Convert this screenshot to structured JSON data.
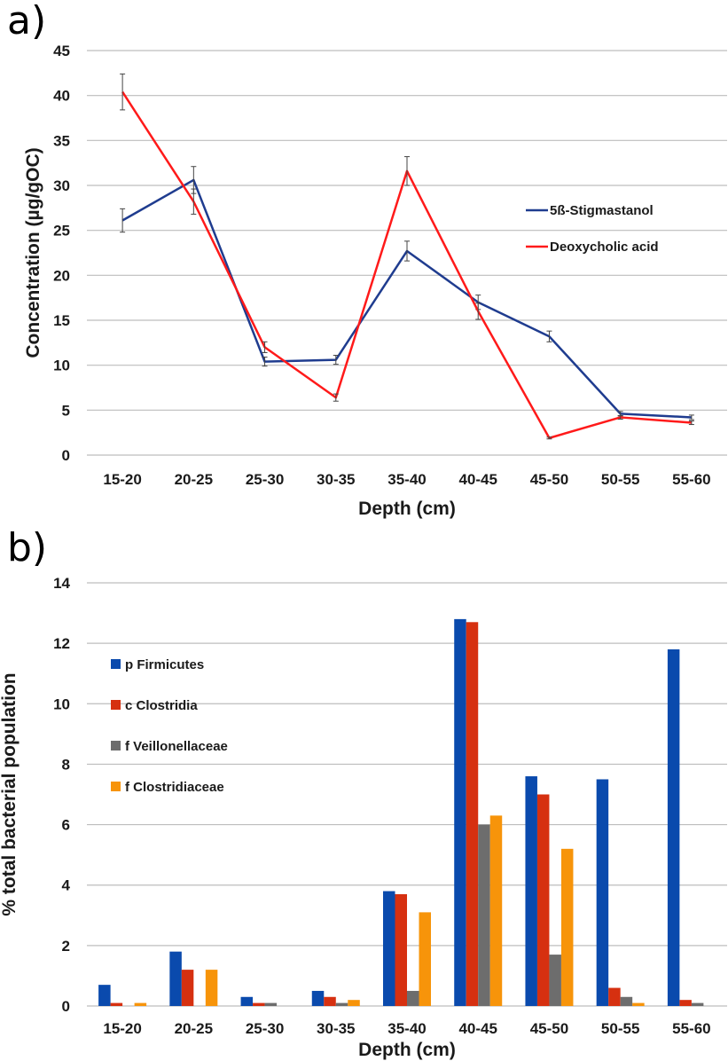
{
  "chart_data": [
    {
      "panel_label": "a)",
      "type": "line",
      "categories": [
        "15-20",
        "20-25",
        "25-30",
        "30-35",
        "35-40",
        "40-45",
        "45-50",
        "50-55",
        "55-60"
      ],
      "series": [
        {
          "name": "5ß-Stigmastanol",
          "color": "#1f3c8f",
          "values": [
            26.1,
            30.6,
            10.4,
            10.6,
            22.7,
            17.0,
            13.2,
            4.6,
            4.2
          ],
          "errors": [
            1.3,
            1.5,
            0.5,
            0.5,
            1.1,
            0.8,
            0.6,
            0.25,
            0.25
          ]
        },
        {
          "name": "Deoxycholic acid",
          "color": "#ff1a1a",
          "values": [
            40.4,
            28.2,
            12.0,
            6.4,
            31.6,
            16.0,
            1.9,
            4.2,
            3.6
          ],
          "errors": [
            2.0,
            1.4,
            0.6,
            0.4,
            1.6,
            0.9,
            0.1,
            0.2,
            0.2
          ]
        }
      ],
      "xlabel": "Depth (cm)",
      "ylabel": "Concentration (µg/gOC)",
      "ylim": [
        0,
        45
      ],
      "yticks": [
        0,
        5,
        10,
        15,
        20,
        25,
        30,
        35,
        40,
        45
      ],
      "grid": true,
      "legend_position": "right"
    },
    {
      "panel_label": "b)",
      "type": "bar",
      "categories": [
        "15-20",
        "20-25",
        "25-30",
        "30-35",
        "35-40",
        "40-45",
        "45-50",
        "50-55",
        "55-60"
      ],
      "series": [
        {
          "name": "p Firmicutes",
          "color": "#0a4aad",
          "values": [
            0.7,
            1.8,
            0.3,
            0.5,
            3.8,
            12.8,
            7.6,
            7.5,
            11.8
          ]
        },
        {
          "name": "c Clostridia",
          "color": "#d63010",
          "values": [
            0.1,
            1.2,
            0.1,
            0.3,
            3.7,
            12.7,
            7.0,
            0.6,
            0.2
          ]
        },
        {
          "name": "f Veillonellaceae",
          "color": "#6d6d6d",
          "values": [
            0.0,
            0.0,
            0.1,
            0.1,
            0.5,
            6.0,
            1.7,
            0.3,
            0.1
          ]
        },
        {
          "name": "f Clostridiaceae",
          "color": "#f7940a",
          "values": [
            0.1,
            1.2,
            0.0,
            0.2,
            3.1,
            6.3,
            5.2,
            0.1,
            0.0
          ]
        }
      ],
      "xlabel": "Depth (cm)",
      "ylabel": "% total bacterial population",
      "ylim": [
        0,
        14
      ],
      "yticks": [
        0,
        2,
        4,
        6,
        8,
        10,
        12,
        14
      ],
      "grid": true,
      "legend_position": "top-left"
    }
  ]
}
